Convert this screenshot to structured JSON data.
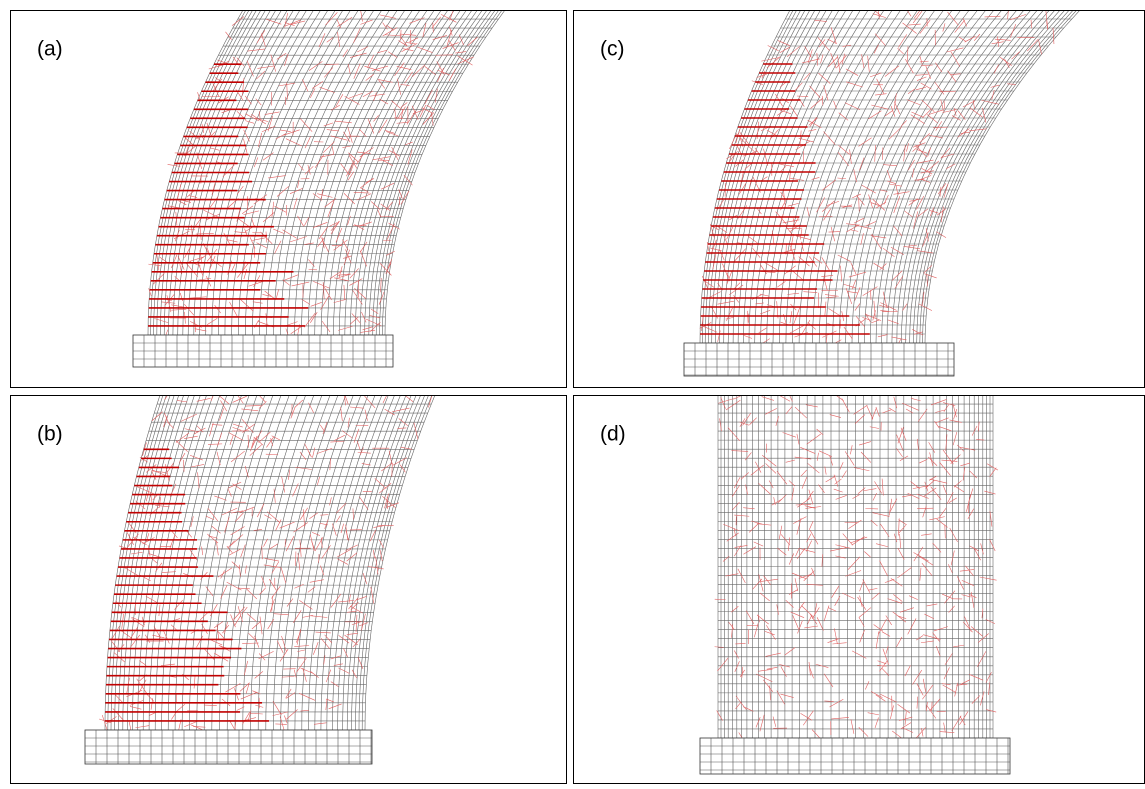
{
  "panels": [
    {
      "label": "(a)"
    },
    {
      "label": "(c)"
    },
    {
      "label": "(b)"
    },
    {
      "label": "(d)"
    }
  ]
}
